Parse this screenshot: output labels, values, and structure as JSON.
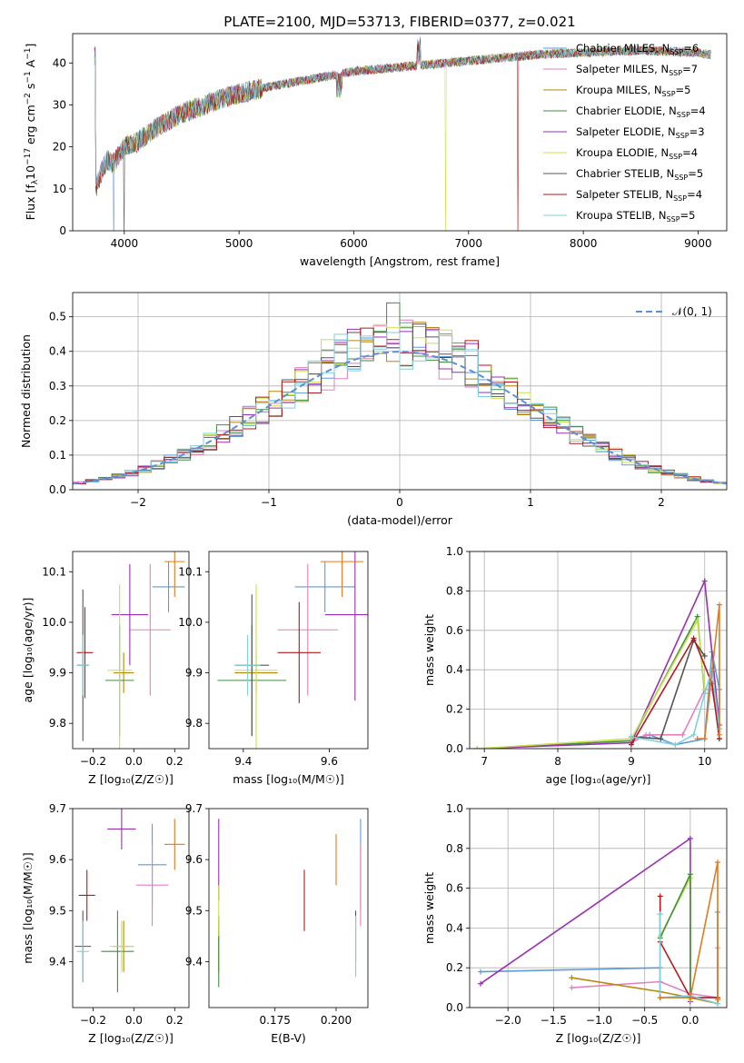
{
  "figure": {
    "title": "PLATE=2100, MJD=53713, FIBERID=0377, z=0.021"
  },
  "colors": {
    "Chabrier MILES": "#5e9ad8",
    "Salpeter MILES": "#e57fbd",
    "Kroupa MILES": "#b8860b",
    "Chabrier ELODIE": "#3f8f3f",
    "Salpeter ELODIE": "#9a2fb0",
    "Kroupa ELODIE": "#c8e04a",
    "Chabrier STELIB": "#555555",
    "Salpeter STELIB": "#b01a1a",
    "Kroupa STELIB": "#7fd0dc",
    "orange": "#e07a1f",
    "normal": "#5b8fd6"
  },
  "chart_data": [
    {
      "id": "spectrum",
      "type": "line",
      "xlabel": "wavelength [Angstrom, rest frame]",
      "ylabel": "Flux [f",
      "ylabel_sub": "λ",
      "ylabel_tail": "10",
      "ylabel_sup": "−17",
      "ylabel_tail2": " erg cm",
      "ylabel_sup2": "−2",
      "ylabel_tail3": " s",
      "ylabel_sup3": "−1",
      "ylabel_tail4": " A",
      "ylabel_sup4": "−1",
      "ylabel_end": "]",
      "xlim": [
        3550,
        9250
      ],
      "ylim": [
        0,
        47
      ],
      "xticks": [
        4000,
        5000,
        6000,
        7000,
        8000,
        9000
      ],
      "yticks": [
        0,
        10,
        20,
        30,
        40
      ],
      "legend": [
        {
          "name": "Chabrier MILES",
          "nssp": "6"
        },
        {
          "name": "Salpeter MILES",
          "nssp": "7"
        },
        {
          "name": "Kroupa MILES",
          "nssp": "5"
        },
        {
          "name": "Chabrier ELODIE",
          "nssp": "4"
        },
        {
          "name": "Salpeter ELODIE",
          "nssp": "3"
        },
        {
          "name": "Kroupa ELODIE",
          "nssp": "4"
        },
        {
          "name": "Chabrier STELIB",
          "nssp": "5"
        },
        {
          "name": "Salpeter STELIB",
          "nssp": "4"
        },
        {
          "name": "Kroupa STELIB",
          "nssp": "5"
        }
      ],
      "legend_label_nssp": "N",
      "legend_label_nssp_sub": "SSP",
      "continuum": [
        [
          3750,
          10
        ],
        [
          3800,
          14
        ],
        [
          3850,
          17
        ],
        [
          3900,
          16
        ],
        [
          4000,
          20
        ],
        [
          4100,
          21
        ],
        [
          4200,
          23
        ],
        [
          4300,
          25
        ],
        [
          4500,
          28
        ],
        [
          4700,
          30
        ],
        [
          4900,
          32
        ],
        [
          5200,
          34
        ],
        [
          5600,
          36
        ],
        [
          6000,
          38
        ],
        [
          6400,
          39
        ],
        [
          6800,
          40
        ],
        [
          7200,
          41
        ],
        [
          7600,
          42
        ],
        [
          8000,
          42.5
        ],
        [
          8500,
          43
        ],
        [
          9000,
          42.5
        ],
        [
          9100,
          42
        ]
      ],
      "drops": [
        {
          "series": "Chabrier MILES",
          "x": 3910
        },
        {
          "series": "Chabrier STELIB",
          "x": 4000
        },
        {
          "series": "Kroupa ELODIE",
          "x": 6800
        },
        {
          "series": "Salpeter STELIB",
          "x": 7430
        }
      ]
    },
    {
      "id": "residuals",
      "type": "histogram",
      "xlabel": "(data-model)/error",
      "ylabel": "Normed distribution",
      "xlim": [
        -2.5,
        2.5
      ],
      "ylim": [
        0,
        0.57
      ],
      "xticks": [
        -2,
        -1,
        0,
        1,
        2
      ],
      "xticklabels": [
        "−2",
        "−1",
        "0",
        "1",
        "2"
      ],
      "yticks": [
        0.0,
        0.1,
        0.2,
        0.3,
        0.4,
        0.5
      ],
      "yticklabels": [
        "0.0",
        "0.1",
        "0.2",
        "0.3",
        "0.4",
        "0.5"
      ],
      "legend": "𝒩(0, 1)",
      "bin_width": 0.1
    },
    {
      "id": "age_vs_Z",
      "type": "errorbar",
      "xlabel": "Z [log₁₀(Z/Z☉)]",
      "ylabel": "age  [log₁₀(age/yr)]",
      "xlim": [
        -0.3,
        0.27
      ],
      "ylim": [
        9.75,
        10.14
      ],
      "xticks": [
        -0.2,
        0.0,
        0.2
      ],
      "xticklabels": [
        "−0.2",
        "0.0",
        "0.2"
      ],
      "yticks": [
        9.8,
        9.9,
        10.0,
        10.1
      ],
      "yticklabels": [
        "9.8",
        "9.9",
        "10.0",
        "10.1"
      ],
      "points": [
        {
          "series": "Chabrier MILES",
          "x": 0.17,
          "y": 10.07,
          "xerr": 0.08,
          "yerr": 0.05
        },
        {
          "series": "Salpeter MILES",
          "x": 0.08,
          "y": 9.985,
          "xerr": 0.1,
          "yerr": 0.13
        },
        {
          "series": "Kroupa MILES",
          "x": -0.05,
          "y": 9.9,
          "xerr": 0.05,
          "yerr": 0.04
        },
        {
          "series": "Chabrier ELODIE",
          "x": -0.07,
          "y": 9.885,
          "xerr": 0.07,
          "yerr": 0.11
        },
        {
          "series": "Salpeter ELODIE",
          "x": -0.02,
          "y": 10.015,
          "xerr": 0.09,
          "yerr": 0.1
        },
        {
          "series": "Kroupa ELODIE",
          "x": -0.07,
          "y": 9.905,
          "xerr": 0.06,
          "yerr": 0.17
        },
        {
          "series": "Chabrier STELIB",
          "x": -0.25,
          "y": 9.915,
          "xerr": 0.03,
          "yerr": 0.15
        },
        {
          "series": "Salpeter STELIB",
          "x": -0.24,
          "y": 9.94,
          "xerr": 0.04,
          "yerr": 0.09
        },
        {
          "series": "Kroupa STELIB",
          "x": -0.25,
          "y": 9.915,
          "xerr": 0.03,
          "yerr": 0.06
        },
        {
          "series": "orange",
          "x": 0.2,
          "y": 10.12,
          "xerr": 0.05,
          "yerr": 0.07
        }
      ]
    },
    {
      "id": "age_vs_mass",
      "type": "errorbar",
      "xlabel": "mass [log₁₀(M/M☉)]",
      "xlim": [
        9.32,
        9.69
      ],
      "ylim": [
        9.75,
        10.14
      ],
      "xticks": [
        9.4,
        9.6
      ],
      "xticklabels": [
        "9.4",
        "9.6"
      ],
      "yticks": [
        9.8,
        9.9,
        10.0,
        10.1
      ],
      "yticklabels": [
        "9.8",
        "9.9",
        "10.0",
        "10.1"
      ],
      "points": [
        {
          "series": "Chabrier MILES",
          "x": 9.59,
          "y": 10.07,
          "xerr": 0.07,
          "yerr": 0.05
        },
        {
          "series": "Salpeter MILES",
          "x": 9.55,
          "y": 9.985,
          "xerr": 0.07,
          "yerr": 0.13
        },
        {
          "series": "Kroupa MILES",
          "x": 9.43,
          "y": 9.9,
          "xerr": 0.05,
          "yerr": 0.04
        },
        {
          "series": "Chabrier ELODIE",
          "x": 9.42,
          "y": 9.885,
          "xerr": 0.08,
          "yerr": 0.11
        },
        {
          "series": "Salpeter ELODIE",
          "x": 9.66,
          "y": 10.015,
          "xerr": 0.07,
          "yerr": 0.17
        },
        {
          "series": "Kroupa ELODIE",
          "x": 9.43,
          "y": 9.905,
          "xerr": 0.05,
          "yerr": 0.17
        },
        {
          "series": "Chabrier STELIB",
          "x": 9.42,
          "y": 9.915,
          "xerr": 0.04,
          "yerr": 0.14
        },
        {
          "series": "Salpeter STELIB",
          "x": 9.53,
          "y": 9.94,
          "xerr": 0.05,
          "yerr": 0.1
        },
        {
          "series": "Kroupa STELIB",
          "x": 9.41,
          "y": 9.915,
          "xerr": 0.03,
          "yerr": 0.06
        },
        {
          "series": "orange",
          "x": 9.63,
          "y": 10.12,
          "xerr": 0.05,
          "yerr": 0.07
        }
      ]
    },
    {
      "id": "weight_vs_age",
      "type": "line",
      "xlabel": "age  [log₁₀(age/yr)]",
      "ylabel": "mass weight",
      "xlim": [
        6.8,
        10.3
      ],
      "ylim": [
        0,
        1
      ],
      "xticks": [
        7,
        8,
        9,
        10
      ],
      "xticklabels": [
        "7",
        "8",
        "9",
        "10"
      ],
      "yticks": [
        0.0,
        0.2,
        0.4,
        0.6,
        0.8,
        1.0
      ],
      "yticklabels": [
        "0.0",
        "0.2",
        "0.4",
        "0.6",
        "0.8",
        "1.0"
      ],
      "series": [
        {
          "name": "Chabrier MILES",
          "x": [
            9.0,
            9.25,
            9.6,
            10.0,
            10.1,
            10.2,
            10.2
          ],
          "y": [
            0.05,
            0.07,
            0.02,
            0.05,
            0.49,
            0.3,
            0.05
          ]
        },
        {
          "name": "Salpeter MILES",
          "x": [
            9.0,
            9.2,
            9.7,
            10.0,
            10.1,
            10.2
          ],
          "y": [
            0.03,
            0.07,
            0.07,
            0.3,
            0.3,
            0.1
          ]
        },
        {
          "name": "Chabrier ELODIE",
          "x": [
            6.9,
            9.0,
            9.9,
            10.0
          ],
          "y": [
            0.0,
            0.04,
            0.67,
            0.28
          ]
        },
        {
          "name": "Salpeter ELODIE",
          "x": [
            6.9,
            9.0,
            10.0,
            10.2
          ],
          "y": [
            0.0,
            0.03,
            0.85,
            0.12
          ]
        },
        {
          "name": "Kroupa ELODIE",
          "x": [
            6.9,
            9.0,
            9.9,
            10.0
          ],
          "y": [
            0.0,
            0.05,
            0.65,
            0.3
          ]
        },
        {
          "name": "Chabrier STELIB",
          "x": [
            9.0,
            9.4,
            9.85,
            10.0
          ],
          "y": [
            0.06,
            0.05,
            0.55,
            0.47
          ]
        },
        {
          "name": "Salpeter STELIB",
          "x": [
            9.0,
            9.85,
            10.1,
            10.2
          ],
          "y": [
            0.02,
            0.56,
            0.33,
            0.05
          ]
        },
        {
          "name": "Kroupa STELIB",
          "x": [
            9.0,
            9.6,
            9.85,
            10.0,
            10.1,
            10.2
          ],
          "y": [
            0.06,
            0.02,
            0.07,
            0.28,
            0.4,
            0.1
          ]
        },
        {
          "name": "orange",
          "x": [
            9.9,
            10.0,
            10.2,
            10.2
          ],
          "y": [
            0.05,
            0.05,
            0.73,
            0.07
          ]
        }
      ]
    },
    {
      "id": "mass_vs_Z",
      "type": "errorbar",
      "xlabel": "Z [log₁₀(Z/Z☉)]",
      "ylabel": "mass [log₁₀(M/M☉)]",
      "xlim": [
        -0.3,
        0.27
      ],
      "ylim": [
        9.31,
        9.7
      ],
      "xticks": [
        -0.2,
        0.0,
        0.2
      ],
      "xticklabels": [
        "−0.2",
        "0.0",
        "0.2"
      ],
      "yticks": [
        9.4,
        9.5,
        9.6,
        9.7
      ],
      "yticklabels": [
        "9.4",
        "9.5",
        "9.6",
        "9.7"
      ],
      "points": [
        {
          "series": "Chabrier MILES",
          "x": 0.09,
          "y": 9.59,
          "xerr": 0.07,
          "yerr": 0.08
        },
        {
          "series": "Salpeter MILES",
          "x": 0.09,
          "y": 9.55,
          "xerr": 0.08,
          "yerr": 0.08
        },
        {
          "series": "Kroupa MILES",
          "x": -0.05,
          "y": 9.43,
          "xerr": 0.05,
          "yerr": 0.05
        },
        {
          "series": "Chabrier ELODIE",
          "x": -0.08,
          "y": 9.42,
          "xerr": 0.08,
          "yerr": 0.08
        },
        {
          "series": "Salpeter ELODIE",
          "x": -0.06,
          "y": 9.66,
          "xerr": 0.07,
          "yerr": 0.04
        },
        {
          "series": "Kroupa ELODIE",
          "x": -0.06,
          "y": 9.43,
          "xerr": 0.06,
          "yerr": 0.05
        },
        {
          "series": "Chabrier STELIB",
          "x": -0.25,
          "y": 9.43,
          "xerr": 0.04,
          "yerr": 0.07
        },
        {
          "series": "Salpeter STELIB",
          "x": -0.23,
          "y": 9.53,
          "xerr": 0.04,
          "yerr": 0.05
        },
        {
          "series": "Kroupa STELIB",
          "x": -0.25,
          "y": 9.42,
          "xerr": 0.03,
          "yerr": 0.06
        },
        {
          "series": "orange",
          "x": 0.2,
          "y": 9.63,
          "xerr": 0.05,
          "yerr": 0.05
        }
      ]
    },
    {
      "id": "mass_vs_EBV",
      "type": "errorbar",
      "xlabel": "E(B-V)",
      "xlim": [
        0.148,
        0.213
      ],
      "ylim": [
        9.31,
        9.7
      ],
      "xticks": [
        0.175,
        0.2
      ],
      "xticklabels": [
        "0.175",
        "0.200"
      ],
      "yticks": [
        9.4,
        9.5,
        9.6,
        9.7
      ],
      "yticklabels": [
        "9.4",
        "9.5",
        "9.6",
        "9.7"
      ],
      "points": [
        {
          "series": "Chabrier MILES",
          "x": 0.21,
          "y": 9.59,
          "xerr": 0.0,
          "yerr": 0.09
        },
        {
          "series": "Salpeter MILES",
          "x": 0.21,
          "y": 9.55,
          "xerr": 0.0,
          "yerr": 0.08
        },
        {
          "series": "Kroupa MILES",
          "x": 0.152,
          "y": 9.43,
          "xerr": 0.0,
          "yerr": 0.05
        },
        {
          "series": "Chabrier ELODIE",
          "x": 0.152,
          "y": 9.42,
          "xerr": 0.0,
          "yerr": 0.07
        },
        {
          "series": "Salpeter ELODIE",
          "x": 0.152,
          "y": 9.6,
          "xerr": 0.0,
          "yerr": 0.08
        },
        {
          "series": "Kroupa ELODIE",
          "x": 0.152,
          "y": 9.5,
          "xerr": 0.0,
          "yerr": 0.05
        },
        {
          "series": "Chabrier STELIB",
          "x": 0.208,
          "y": 9.45,
          "xerr": 0.0,
          "yerr": 0.05
        },
        {
          "series": "Salpeter STELIB",
          "x": 0.187,
          "y": 9.52,
          "xerr": 0.0,
          "yerr": 0.06
        },
        {
          "series": "Kroupa STELIB",
          "x": 0.208,
          "y": 9.43,
          "xerr": 0.0,
          "yerr": 0.06
        },
        {
          "series": "orange",
          "x": 0.2,
          "y": 9.6,
          "xerr": 0.0,
          "yerr": 0.05
        }
      ]
    },
    {
      "id": "weight_vs_Z",
      "type": "line",
      "xlabel": "Z [log₁₀(Z/Z☉)]",
      "ylabel": "mass weight",
      "xlim": [
        -2.42,
        0.4
      ],
      "ylim": [
        0,
        1
      ],
      "xticks": [
        -2.0,
        -1.5,
        -1.0,
        -0.5,
        0.0
      ],
      "xticklabels": [
        "−2.0",
        "−1.5",
        "−1.0",
        "−0.5",
        "0.0"
      ],
      "yticks": [
        0.0,
        0.2,
        0.4,
        0.6,
        0.8,
        1.0
      ],
      "yticklabels": [
        "0.0",
        "0.2",
        "0.4",
        "0.6",
        "0.8",
        "1.0"
      ],
      "series": [
        {
          "name": "Chabrier MILES",
          "x": [
            -2.3,
            -0.33,
            -0.33,
            0.3,
            0.3
          ],
          "y": [
            0.18,
            0.2,
            0.05,
            0.05,
            0.48
          ]
        },
        {
          "name": "Salpeter MILES",
          "x": [
            -1.3,
            -0.33,
            0.0,
            0.3,
            0.3
          ],
          "y": [
            0.1,
            0.13,
            0.07,
            0.05,
            0.3
          ]
        },
        {
          "name": "Kroupa MILES",
          "x": [
            -1.3,
            -0.33,
            0.0,
            0.3,
            0.3
          ],
          "y": [
            0.15,
            0.08,
            0.05,
            0.02,
            0.05
          ]
        },
        {
          "name": "Salpeter ELODIE",
          "x": [
            -2.3,
            0.0,
            0.0
          ],
          "y": [
            0.12,
            0.85,
            0.03
          ]
        },
        {
          "name": "Kroupa ELODIE",
          "x": [
            -0.33,
            0.0,
            0.0
          ],
          "y": [
            0.36,
            0.65,
            0.04
          ]
        },
        {
          "name": "Chabrier ELODIE",
          "x": [
            -0.33,
            0.0,
            0.0
          ],
          "y": [
            0.35,
            0.67,
            0.05
          ]
        },
        {
          "name": "Salpeter STELIB",
          "x": [
            -0.33,
            -0.33,
            0.0,
            0.3
          ],
          "y": [
            0.56,
            0.33,
            0.05,
            0.05
          ]
        },
        {
          "name": "Chabrier STELIB",
          "x": [
            -0.33,
            -0.33
          ],
          "y": [
            0.47,
            0.05
          ]
        },
        {
          "name": "Kroupa STELIB",
          "x": [
            -0.33,
            -0.33,
            0.0,
            0.3
          ],
          "y": [
            0.47,
            0.05,
            0.06,
            0.02
          ]
        },
        {
          "name": "orange",
          "x": [
            -0.33,
            0.0,
            0.3,
            0.3
          ],
          "y": [
            0.05,
            0.05,
            0.73,
            0.04
          ]
        }
      ]
    }
  ]
}
